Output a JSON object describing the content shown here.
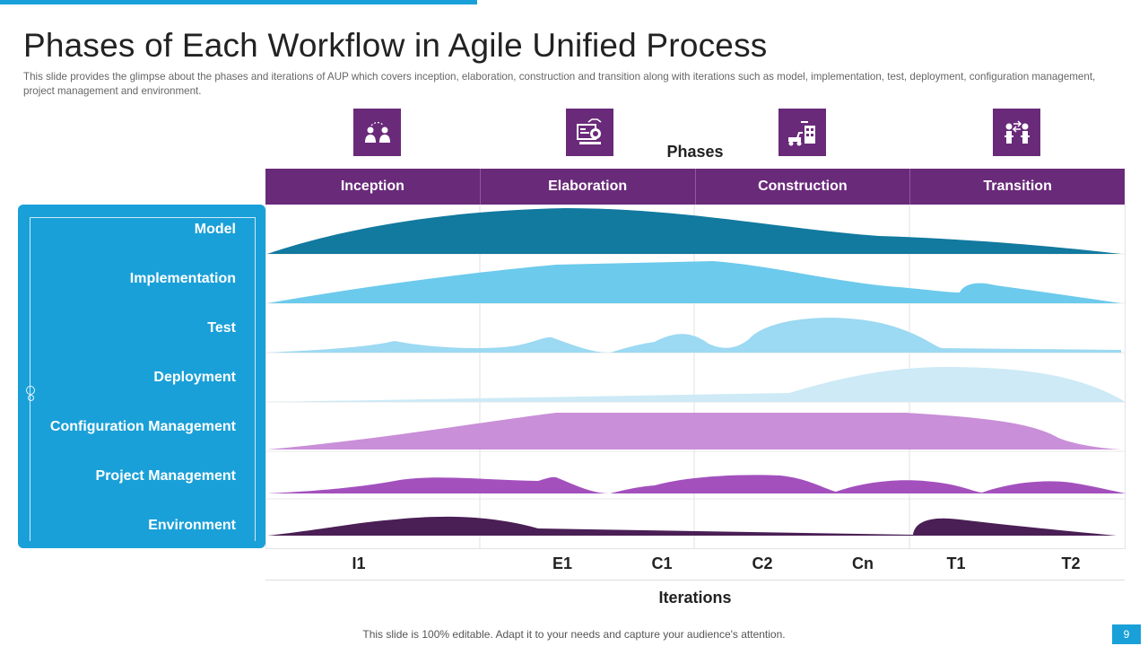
{
  "slide": {
    "title": "Phases of Each Workflow in Agile Unified Process",
    "subtitle": "This slide provides  the glimpse about the phases and iterations of AUP which covers inception,  elaboration,  construction and transition along with iterations such as model,  implementation,  test, deployment,  configuration  management,  project management  and environment.",
    "footer": "This slide is 100% editable. Adapt it to your needs and capture your audience's attention.",
    "page_number": "9"
  },
  "phases_heading": "Phases",
  "iterations_heading": "Iterations",
  "phases": [
    {
      "label": "Inception",
      "icon": "people-icon"
    },
    {
      "label": "Elaboration",
      "icon": "idea-screen-icon"
    },
    {
      "label": "Construction",
      "icon": "construction-icon"
    },
    {
      "label": "Transition",
      "icon": "transition-icon"
    }
  ],
  "workflows": [
    {
      "label": "Model",
      "color": "#12799f"
    },
    {
      "label": "Implementation",
      "color": "#6ccaec"
    },
    {
      "label": "Test",
      "color": "#9cd9f2"
    },
    {
      "label": "Deployment",
      "color": "#cdeaf6"
    },
    {
      "label": "Configuration Management",
      "color": "#c98fd8"
    },
    {
      "label": "Project Management",
      "color": "#a350bd"
    },
    {
      "label": "Environment",
      "color": "#4a1f55"
    }
  ],
  "iterations": [
    "I1",
    "E1",
    "C1",
    "C2",
    "Cn",
    "T1",
    "T2"
  ],
  "colors": {
    "accent_blue": "#1aa0d8",
    "phase_purple": "#6a2a7a"
  }
}
